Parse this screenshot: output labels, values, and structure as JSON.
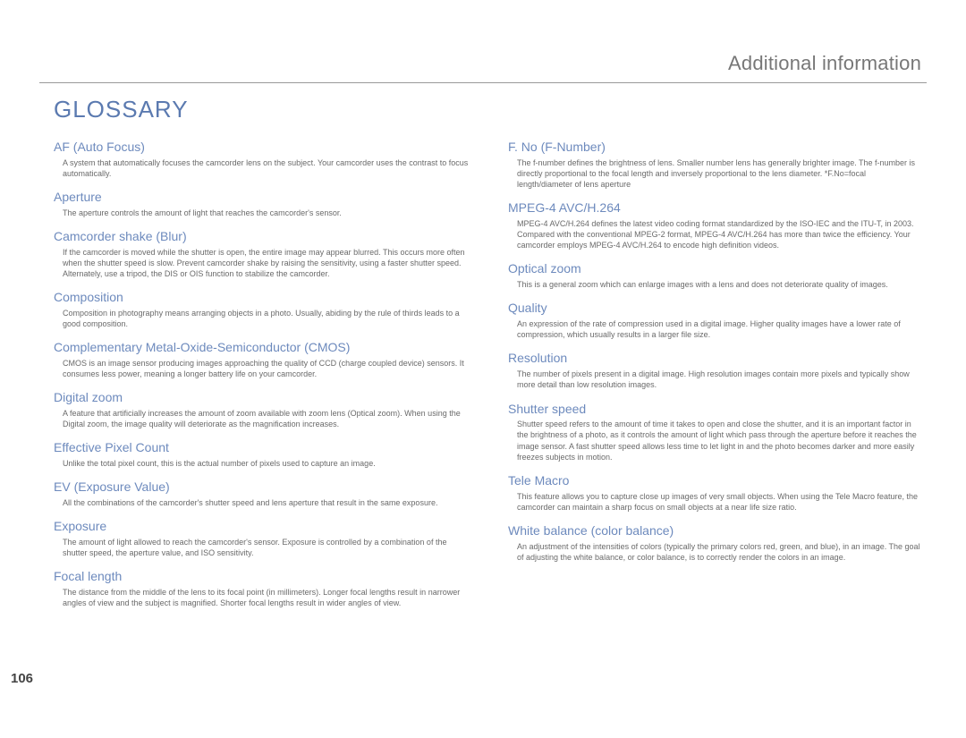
{
  "header": "Additional information",
  "title": "GLOSSARY",
  "page_number": "106",
  "colors": {
    "accent": "#6d8abd",
    "title": "#5b7ab0",
    "header_text": "#777777",
    "body_text": "#6a6a6a",
    "rule": "#999999"
  },
  "left": [
    {
      "term": "AF (Auto Focus)",
      "def": "A system that automatically focuses the camcorder lens on the subject. Your camcorder uses the contrast to focus automatically."
    },
    {
      "term": "Aperture",
      "def": "The aperture controls the amount of light that reaches the camcorder's sensor."
    },
    {
      "term": "Camcorder shake (Blur)",
      "def": "If the camcorder is moved while the shutter is open, the entire image may appear blurred. This occurs more often when the shutter speed is slow. Prevent camcorder shake by raising the sensitivity, using a faster shutter speed. Alternately, use a tripod, the DIS or OIS function to stabilize the camcorder."
    },
    {
      "term": "Composition",
      "def": "Composition in photography means arranging objects in a photo. Usually, abiding by the rule of thirds leads to a good composition."
    },
    {
      "term": "Complementary Metal-Oxide-Semiconductor (CMOS)",
      "def": "CMOS is an image sensor producing images approaching the quality of CCD (charge coupled device) sensors. It consumes less power, meaning a longer battery life on your camcorder."
    },
    {
      "term": "Digital zoom",
      "def": "A feature that artificially increases the amount of zoom available with zoom lens (Optical zoom). When using the Digital zoom, the image quality will deteriorate as the magnification increases."
    },
    {
      "term": "Effective Pixel Count",
      "def": "Unlike the total pixel count, this is the actual number of pixels used to capture an image."
    },
    {
      "term": "EV (Exposure Value)",
      "def": "All the combinations of the camcorder's shutter speed and lens aperture that result in the same exposure."
    },
    {
      "term": "Exposure",
      "def": "The amount of light allowed to reach the camcorder's sensor. Exposure is controlled by a combination of the shutter speed, the aperture value, and ISO sensitivity."
    },
    {
      "term": "Focal length",
      "def": "The distance from the middle of the lens to its focal point (in millimeters). Longer focal lengths result in narrower angles of view and the subject is magnified. Shorter focal lengths result in wider angles of view."
    }
  ],
  "right": [
    {
      "term": "F. No (F-Number)",
      "def": "The f-number defines the brightness of lens. Smaller number lens has generally brighter image. The f-number is directly proportional to the focal length and inversely proportional to the lens diameter. *F.No=focal length/diameter of lens aperture"
    },
    {
      "term": "MPEG-4 AVC/H.264",
      "def": "MPEG-4 AVC/H.264 defines the latest video coding format standardized by the ISO-IEC and the ITU-T, in 2003. Compared with the conventional MPEG-2 format, MPEG-4 AVC/H.264 has more than twice the efficiency. Your camcorder employs MPEG-4 AVC/H.264 to encode high definition videos."
    },
    {
      "term": "Optical zoom",
      "def": "This is a general zoom which can enlarge images with a lens and does not deteriorate quality of images."
    },
    {
      "term": "Quality",
      "def": "An expression of the rate of compression used in a digital image. Higher quality images have a lower rate of compression, which usually results in a larger file size."
    },
    {
      "term": "Resolution",
      "def": "The number of pixels present in a digital image. High resolution images contain more pixels and typically show more detail than low resolution images."
    },
    {
      "term": "Shutter speed",
      "def": "Shutter speed refers to the amount of time it takes to open and close the shutter, and it is an important factor in the brightness of a photo, as it controls the amount of light which pass through the aperture before it reaches the image sensor. A fast shutter speed allows less time to let light in and the photo becomes darker and more easily freezes subjects in motion."
    },
    {
      "term": "Tele Macro",
      "def": "This feature allows you to capture close up images of very small objects. When using the Tele Macro feature, the camcorder can maintain a sharp focus on small objects at a near life size ratio."
    },
    {
      "term": "White balance (color balance)",
      "def": "An adjustment of the intensities of colors (typically the primary colors red, green, and blue), in an image. The goal of adjusting the white balance, or color balance, is to correctly render the colors in an image."
    }
  ]
}
